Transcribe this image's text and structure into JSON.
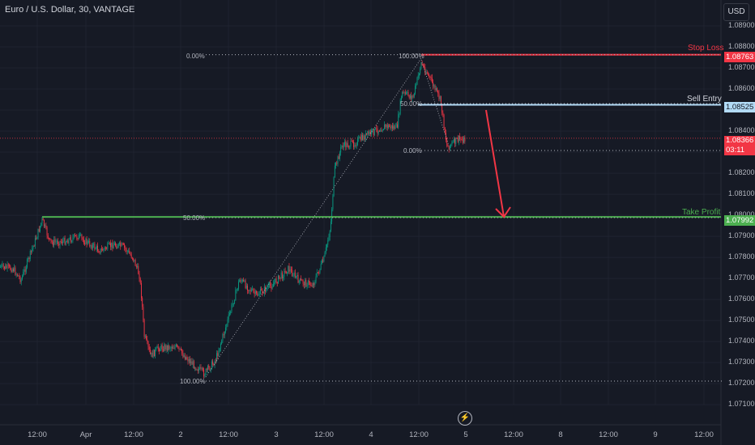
{
  "header": {
    "title": "Euro / U.S. Dollar, 30, VANTAGE"
  },
  "currency_button": {
    "label": "USD"
  },
  "price_axis": {
    "ticks": [
      "1.08900",
      "1.08800",
      "1.08700",
      "1.08600",
      "1.08500",
      "1.08400",
      "1.08300",
      "1.08200",
      "1.08100",
      "1.08000",
      "1.07900",
      "1.07800",
      "1.07700",
      "1.07600",
      "1.07500",
      "1.07400",
      "1.07300",
      "1.07200",
      "1.07100"
    ],
    "range": [
      1.0707,
      1.0903
    ]
  },
  "time_axis": {
    "labels": [
      "12:00",
      "Apr",
      "12:00",
      "2",
      "12:00",
      "3",
      "12:00",
      "4",
      "12:00",
      "5",
      "12:00",
      "8",
      "12:00",
      "9",
      "12:00"
    ]
  },
  "trade_levels": {
    "stop_loss": {
      "label": "Stop Loss",
      "price": "1.08763",
      "color": "#f23645"
    },
    "sell_entry": {
      "label": "Sell Entry",
      "price": "1.08525",
      "color": "#b2dbf6"
    },
    "take_profit": {
      "label": "Take Profit",
      "price": "1.07992",
      "color": "#4caf50"
    }
  },
  "current_price": {
    "price": "1.08366",
    "countdown": "03:11",
    "color": "#f23645"
  },
  "fibonacci": {
    "large": {
      "top_label": "0.00%",
      "mid_label": "50.00%",
      "bottom_label": "100.00%"
    },
    "small": {
      "top_label": "100.00%",
      "mid_label": "50.00%",
      "bottom_label": "0.00%"
    }
  },
  "chart_data": {
    "type": "candlestick",
    "instrument": "Euro / U.S. Dollar",
    "timeframe": "30",
    "ylim": [
      1.0707,
      1.0903
    ],
    "points": [
      {
        "x": "Apr 1 00:00",
        "y": 1.0776
      },
      {
        "x": "Apr 1 12:00",
        "y": 1.0797
      },
      {
        "x": "Apr 1 18:00",
        "y": 1.079
      },
      {
        "x": "Apr 2 04:00",
        "y": 1.0777
      },
      {
        "x": "Apr 2 06:00",
        "y": 1.0733
      },
      {
        "x": "Apr 2 12:00",
        "y": 1.0738
      },
      {
        "x": "Apr 2 17:00",
        "y": 1.0728
      },
      {
        "x": "Apr 3 04:00",
        "y": 1.0772
      },
      {
        "x": "Apr 3 10:00",
        "y": 1.0778
      },
      {
        "x": "Apr 3 15:00",
        "y": 1.0788
      },
      {
        "x": "Apr 3 19:00",
        "y": 1.0828
      },
      {
        "x": "Apr 4 04:00",
        "y": 1.084
      },
      {
        "x": "Apr 4 09:00",
        "y": 1.0849
      },
      {
        "x": "Apr 4 12:00",
        "y": 1.087
      },
      {
        "x": "Apr 4 16:00",
        "y": 1.0856
      },
      {
        "x": "Apr 4 19:00",
        "y": 1.0836
      }
    ]
  }
}
